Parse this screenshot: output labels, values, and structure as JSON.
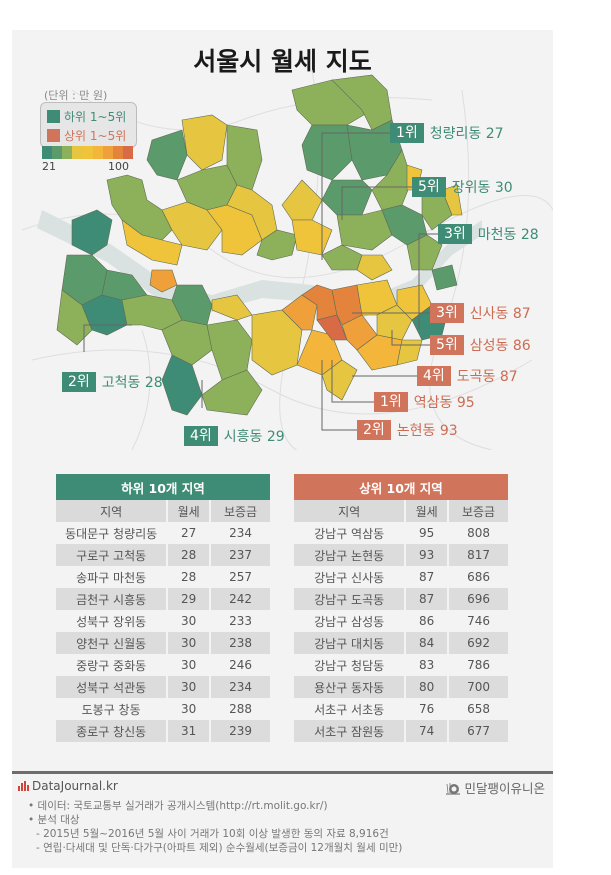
{
  "title": "서울시 월세 지도",
  "legend": {
    "unit": "(단위 : 만 원)",
    "bottom_label": "하위 1~5위",
    "top_label": "상위 1~5위",
    "scale_min": "21",
    "scale_max": "100",
    "colors": {
      "green": "#3f8c76",
      "orange": "#d0745c",
      "scale": [
        "#3f8c76",
        "#5b9a6a",
        "#8db15a",
        "#e6c640",
        "#f0c43a",
        "#f3b53a",
        "#f0a03a",
        "#e4843c",
        "#d86a46"
      ]
    }
  },
  "map_labels": {
    "bottom": [
      {
        "rank": "1위",
        "name": "청량리동 27"
      },
      {
        "rank": "5위",
        "name": "장위동 30"
      },
      {
        "rank": "3위",
        "name": "마천동 28"
      },
      {
        "rank": "2위",
        "name": "고척동 28"
      },
      {
        "rank": "4위",
        "name": "시흥동 29"
      }
    ],
    "top": [
      {
        "rank": "3위",
        "name": "신사동 87"
      },
      {
        "rank": "5위",
        "name": "삼성동 86"
      },
      {
        "rank": "4위",
        "name": "도곡동 87"
      },
      {
        "rank": "1위",
        "name": "역삼동 95"
      },
      {
        "rank": "2위",
        "name": "논현동 93"
      }
    ]
  },
  "bottom_table": {
    "title": "하위 10개 지역",
    "columns": [
      "지역",
      "월세",
      "보증금"
    ],
    "rows": [
      [
        "동대문구 청량리동",
        "27",
        "234"
      ],
      [
        "구로구 고척동",
        "28",
        "237"
      ],
      [
        "송파구 마천동",
        "28",
        "257"
      ],
      [
        "금천구 시흥동",
        "29",
        "242"
      ],
      [
        "성북구 장위동",
        "30",
        "233"
      ],
      [
        "양천구 신월동",
        "30",
        "238"
      ],
      [
        "중랑구 중화동",
        "30",
        "246"
      ],
      [
        "성북구 석관동",
        "30",
        "234"
      ],
      [
        "도봉구 창동",
        "30",
        "288"
      ],
      [
        "종로구 창신동",
        "31",
        "239"
      ]
    ]
  },
  "top_table": {
    "title": "상위 10개 지역",
    "columns": [
      "지역",
      "월세",
      "보증금"
    ],
    "rows": [
      [
        "강남구 역삼동",
        "95",
        "808"
      ],
      [
        "강남구 논현동",
        "93",
        "817"
      ],
      [
        "강남구 신사동",
        "87",
        "686"
      ],
      [
        "강남구 도곡동",
        "87",
        "696"
      ],
      [
        "강남구 삼성동",
        "86",
        "746"
      ],
      [
        "강남구 대치동",
        "84",
        "692"
      ],
      [
        "강남구 청담동",
        "83",
        "786"
      ],
      [
        "용산구 동자동",
        "80",
        "700"
      ],
      [
        "서초구 서초동",
        "76",
        "658"
      ],
      [
        "서초구 잠원동",
        "74",
        "677"
      ]
    ]
  },
  "footer": {
    "brand": "DataJournal.kr",
    "union": "민달팽이유니온",
    "notes": [
      "• 데이터: 국토교통부 실거래가 공개시스템(http://rt.molit.go.kr/)",
      "• 분석 대상",
      "  - 2015년 5월~2016년 5월 사이 거래가 10회 이상 발생한 동의 자료 8,916건",
      "  - 연립·다세대 및 단독·다가구(아파트 제외) 순수월세(보증금이 12개월치 월세 미만)"
    ]
  }
}
